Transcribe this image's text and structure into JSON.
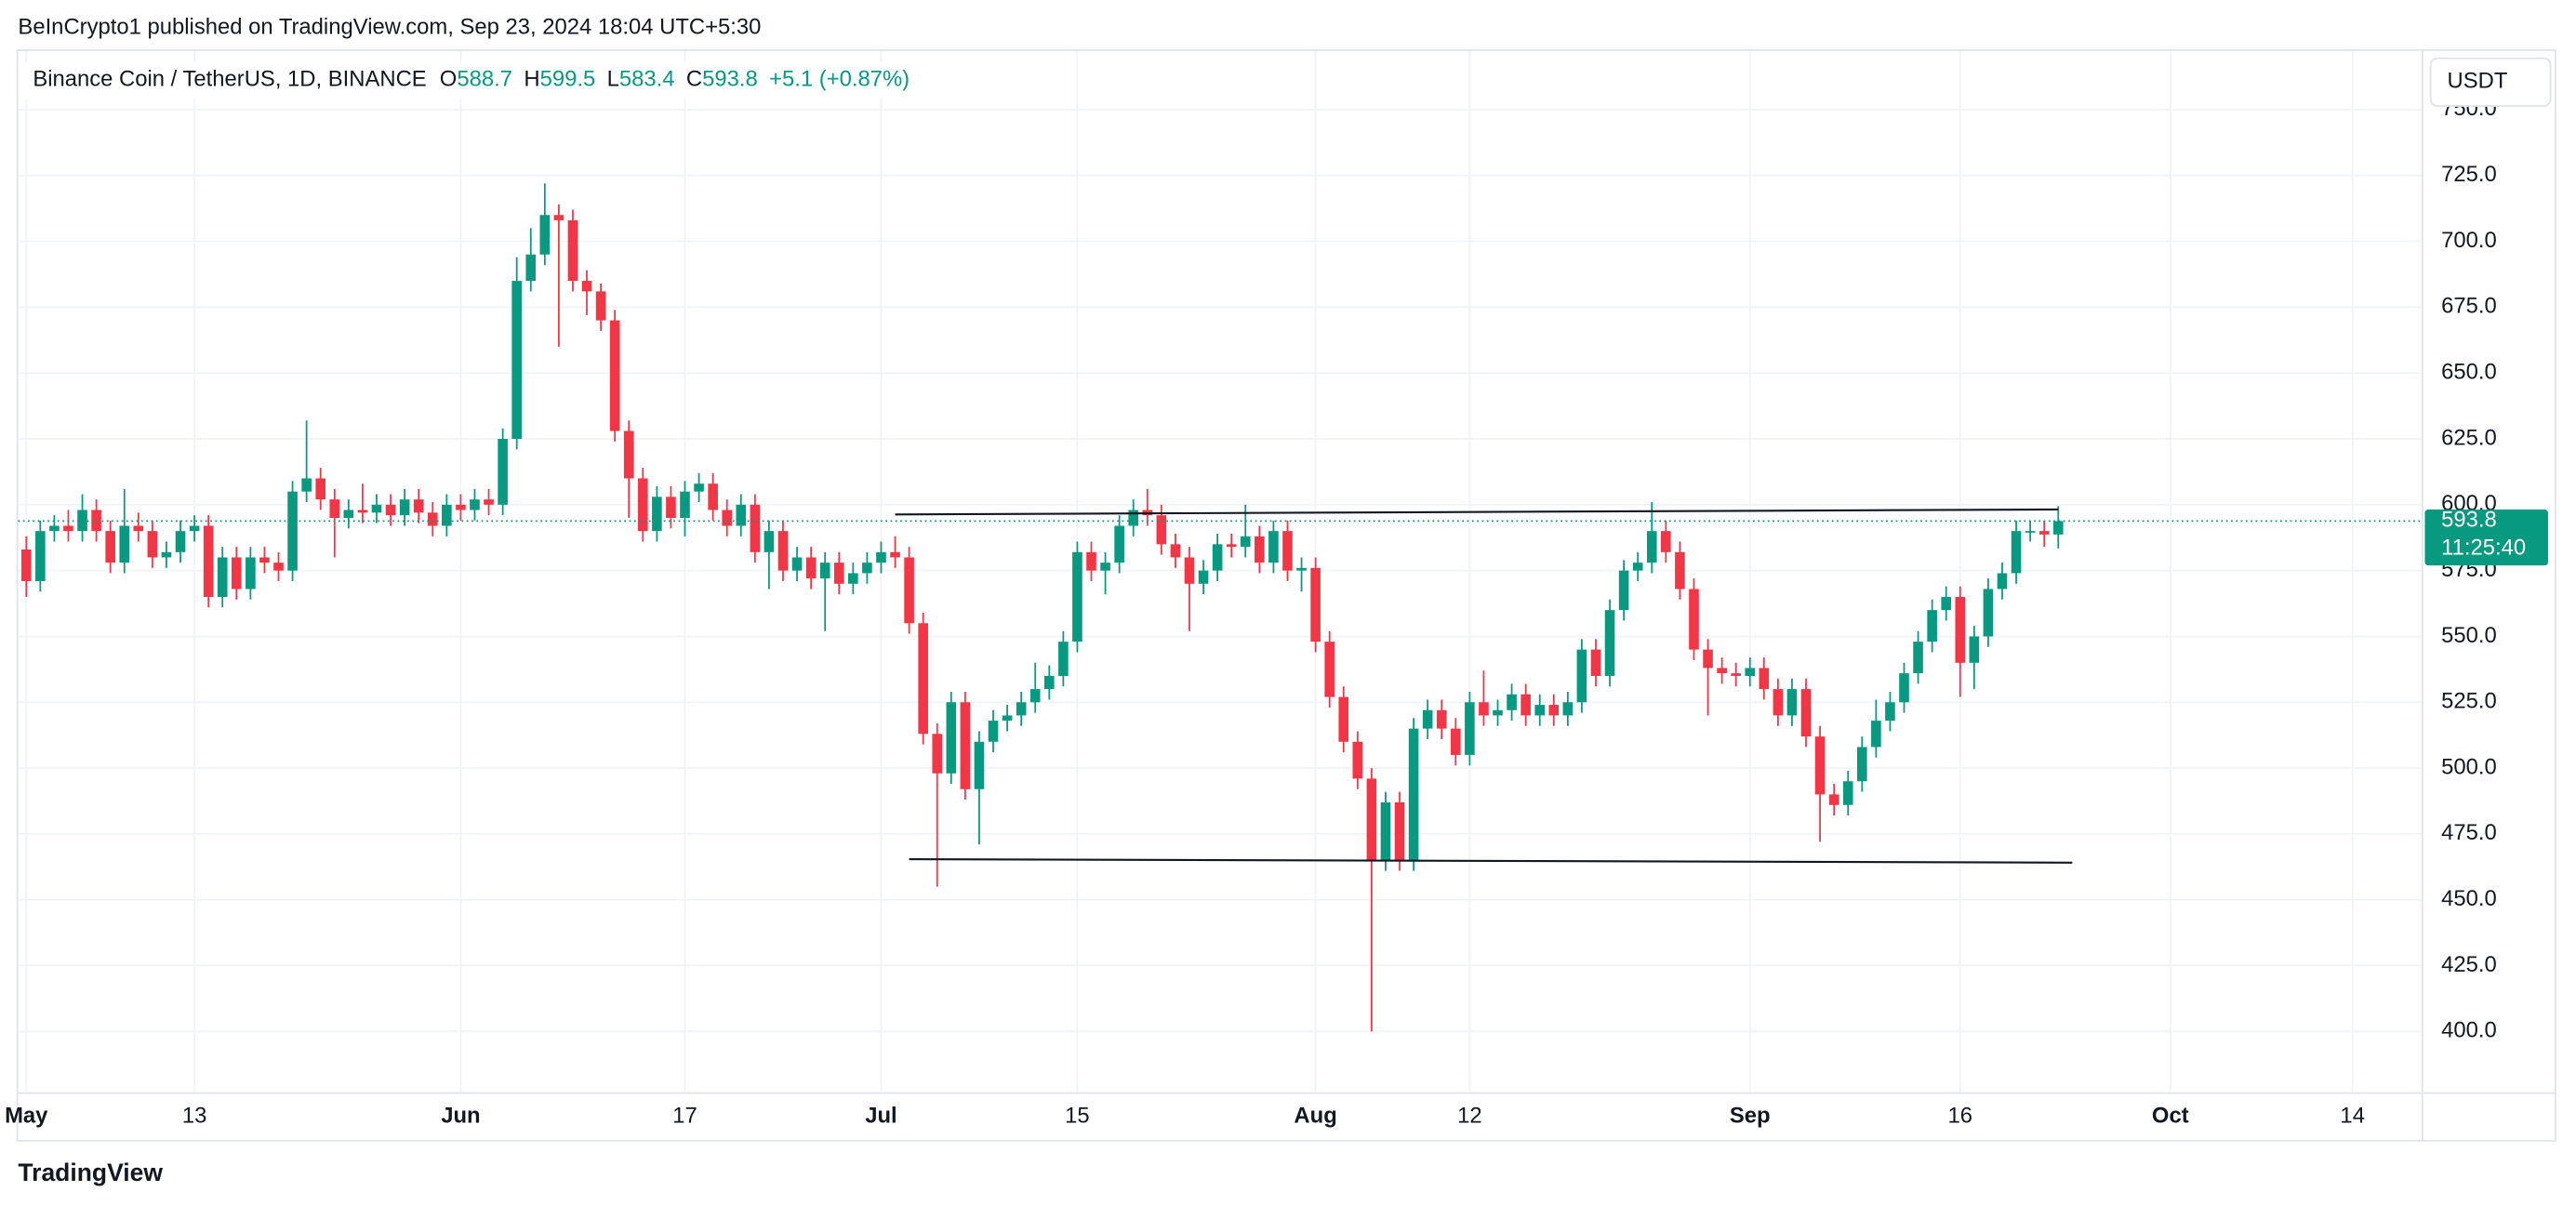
{
  "publisher": "BeInCrypto1 published on TradingView.com, Sep 23, 2024 18:04 UTC+5:30",
  "footer": "TradingView",
  "chart_data": {
    "type": "candlestick",
    "title": "Binance Coin / TetherUS, 1D, BINANCE",
    "ohlc_labels": [
      "O",
      "H",
      "L",
      "C"
    ],
    "change": "+5.1 (+0.87%)",
    "currency": "USDT",
    "countdown": "11:25:40",
    "up_color": "#089981",
    "down_color": "#f23645",
    "grid": true,
    "x": [
      "May 1",
      "May 2",
      "May 3",
      "May 4",
      "May 5",
      "May 6",
      "May 7",
      "May 8",
      "May 9",
      "May 10",
      "May 11",
      "May 12",
      "May 13",
      "May 14",
      "May 15",
      "May 16",
      "May 17",
      "May 18",
      "May 19",
      "May 20",
      "May 21",
      "May 22",
      "May 23",
      "May 24",
      "May 25",
      "May 26",
      "May 27",
      "May 28",
      "May 29",
      "May 30",
      "May 31",
      "Jun 1",
      "Jun 2",
      "Jun 3",
      "Jun 4",
      "Jun 5",
      "Jun 6",
      "Jun 7",
      "Jun 8",
      "Jun 9",
      "Jun 10",
      "Jun 11",
      "Jun 12",
      "Jun 13",
      "Jun 14",
      "Jun 15",
      "Jun 16",
      "Jun 17",
      "Jun 18",
      "Jun 19",
      "Jun 20",
      "Jun 21",
      "Jun 22",
      "Jun 23",
      "Jun 24",
      "Jun 25",
      "Jun 26",
      "Jun 27",
      "Jun 28",
      "Jun 29",
      "Jun 30",
      "Jul 1",
      "Jul 2",
      "Jul 3",
      "Jul 4",
      "Jul 5",
      "Jul 6",
      "Jul 7",
      "Jul 8",
      "Jul 9",
      "Jul 10",
      "Jul 11",
      "Jul 12",
      "Jul 13",
      "Jul 14",
      "Jul 15",
      "Jul 16",
      "Jul 17",
      "Jul 18",
      "Jul 19",
      "Jul 20",
      "Jul 21",
      "Jul 22",
      "Jul 23",
      "Jul 24",
      "Jul 25",
      "Jul 26",
      "Jul 27",
      "Jul 28",
      "Jul 29",
      "Jul 30",
      "Jul 31",
      "Aug 1",
      "Aug 2",
      "Aug 3",
      "Aug 4",
      "Aug 5",
      "Aug 6",
      "Aug 7",
      "Aug 8",
      "Aug 9",
      "Aug 10",
      "Aug 11",
      "Aug 12",
      "Aug 13",
      "Aug 14",
      "Aug 15",
      "Aug 16",
      "Aug 17",
      "Aug 18",
      "Aug 19",
      "Aug 20",
      "Aug 21",
      "Aug 22",
      "Aug 23",
      "Aug 24",
      "Aug 25",
      "Aug 26",
      "Aug 27",
      "Aug 28",
      "Aug 29",
      "Aug 30",
      "Aug 31",
      "Sep 1",
      "Sep 2",
      "Sep 3",
      "Sep 4",
      "Sep 5",
      "Sep 6",
      "Sep 7",
      "Sep 8",
      "Sep 9",
      "Sep 10",
      "Sep 11",
      "Sep 12",
      "Sep 13",
      "Sep 14",
      "Sep 15",
      "Sep 16",
      "Sep 17",
      "Sep 18",
      "Sep 19",
      "Sep 20",
      "Sep 21",
      "Sep 22",
      "Sep 23"
    ],
    "open": [
      583,
      571,
      590,
      592,
      590,
      598,
      590,
      578,
      592,
      590,
      580,
      582,
      590,
      592,
      565,
      580,
      568,
      580,
      578,
      575,
      605,
      610,
      602,
      595,
      598,
      597,
      600,
      596,
      602,
      597,
      592,
      600,
      598,
      602,
      600,
      625,
      685,
      695,
      710,
      708,
      685,
      681,
      670,
      628,
      610,
      590,
      603,
      595,
      605,
      608,
      598,
      592,
      600,
      582,
      590,
      575,
      580,
      572,
      578,
      570,
      574,
      578,
      582,
      580,
      555,
      513,
      498,
      525,
      492,
      510,
      518,
      520,
      525,
      530,
      535,
      548,
      582,
      575,
      578,
      592,
      598,
      596,
      585,
      580,
      570,
      575,
      585,
      584,
      588,
      578,
      590,
      575,
      576,
      548,
      527,
      510,
      496,
      465,
      487,
      465,
      515,
      522,
      515,
      505,
      525,
      520,
      522,
      528,
      520,
      524,
      520,
      525,
      545,
      535,
      560,
      575,
      578,
      590,
      582,
      568,
      545,
      538,
      536,
      535,
      538,
      530,
      520,
      530,
      512,
      490,
      486,
      495,
      508,
      518,
      525,
      536,
      548,
      560,
      565,
      540,
      550,
      568,
      574,
      590,
      590,
      588.7
    ],
    "high": [
      588,
      594,
      596,
      598,
      604,
      602,
      594,
      606,
      597,
      594,
      586,
      594,
      596,
      596,
      584,
      584,
      584,
      584,
      582,
      609,
      632,
      614,
      606,
      602,
      608,
      604,
      604,
      606,
      606,
      601,
      604,
      604,
      606,
      606,
      629,
      694,
      705,
      722,
      714,
      712,
      689,
      684,
      674,
      632,
      614,
      607,
      607,
      609,
      612,
      612,
      602,
      604,
      604,
      594,
      594,
      584,
      584,
      582,
      582,
      578,
      582,
      586,
      588,
      584,
      559,
      517,
      529,
      529,
      514,
      522,
      524,
      529,
      540,
      539,
      552,
      586,
      586,
      582,
      596,
      602,
      606,
      600,
      589,
      584,
      579,
      589,
      589,
      600,
      592,
      594,
      594,
      580,
      580,
      552,
      531,
      514,
      500,
      491,
      491,
      519,
      526,
      526,
      519,
      529,
      537,
      526,
      532,
      532,
      528,
      528,
      529,
      549,
      549,
      564,
      579,
      582,
      601,
      594,
      586,
      572,
      549,
      542,
      540,
      542,
      542,
      534,
      534,
      534,
      516,
      494,
      499,
      512,
      526,
      529,
      540,
      552,
      564,
      569,
      569,
      554,
      572,
      578,
      594,
      594,
      594,
      599.5
    ],
    "low": [
      565,
      567,
      586,
      586,
      586,
      586,
      574,
      574,
      586,
      576,
      576,
      578,
      586,
      561,
      561,
      564,
      564,
      574,
      571,
      571,
      601,
      598,
      580,
      591,
      593,
      593,
      592,
      592,
      593,
      588,
      588,
      594,
      594,
      596,
      596,
      621,
      681,
      691,
      660,
      681,
      672,
      666,
      624,
      595,
      586,
      586,
      591,
      588,
      601,
      594,
      588,
      588,
      578,
      568,
      571,
      571,
      568,
      552,
      566,
      566,
      570,
      574,
      576,
      551,
      509,
      455,
      494,
      488,
      471,
      506,
      514,
      516,
      521,
      526,
      531,
      544,
      571,
      566,
      574,
      588,
      592,
      581,
      576,
      552,
      566,
      571,
      580,
      580,
      574,
      574,
      571,
      567,
      544,
      523,
      506,
      492,
      400,
      461,
      461,
      461,
      511,
      511,
      501,
      501,
      516,
      516,
      518,
      516,
      516,
      516,
      516,
      521,
      531,
      531,
      556,
      571,
      574,
      578,
      564,
      541,
      520,
      532,
      531,
      531,
      526,
      516,
      516,
      508,
      472,
      482,
      482,
      491,
      504,
      514,
      521,
      532,
      544,
      556,
      527,
      530,
      546,
      564,
      570,
      586,
      584,
      583.4
    ],
    "close": [
      571,
      590,
      592,
      590,
      598,
      590,
      578,
      592,
      590,
      580,
      582,
      590,
      592,
      565,
      580,
      568,
      580,
      578,
      575,
      605,
      610,
      602,
      595,
      598,
      597,
      600,
      596,
      602,
      597,
      592,
      600,
      598,
      602,
      600,
      625,
      685,
      695,
      710,
      708,
      685,
      681,
      670,
      628,
      610,
      590,
      603,
      595,
      605,
      608,
      598,
      592,
      600,
      582,
      590,
      575,
      580,
      572,
      578,
      570,
      574,
      578,
      582,
      580,
      555,
      513,
      498,
      525,
      492,
      510,
      518,
      520,
      525,
      530,
      535,
      548,
      582,
      575,
      578,
      592,
      598,
      596,
      585,
      580,
      570,
      575,
      585,
      584,
      588,
      578,
      590,
      575,
      576,
      548,
      527,
      510,
      496,
      465,
      487,
      465,
      515,
      522,
      515,
      505,
      525,
      520,
      522,
      528,
      520,
      524,
      520,
      525,
      545,
      535,
      560,
      575,
      578,
      590,
      582,
      568,
      545,
      538,
      536,
      535,
      538,
      530,
      520,
      530,
      512,
      490,
      486,
      495,
      508,
      518,
      525,
      536,
      548,
      560,
      565,
      540,
      550,
      568,
      574,
      590,
      590,
      588.7,
      593.8
    ],
    "lines": [
      {
        "x": [
          "Jul 2",
          "Sep 23"
        ],
        "y": [
          596.3,
          598.2
        ]
      },
      {
        "x": [
          "Jul 3",
          "Sep 24"
        ],
        "y": [
          465.4,
          464.1
        ]
      }
    ],
    "ylim": [
      376.9,
      772.3
    ],
    "yticks": [
      {
        "value": 400,
        "label": "400.0"
      },
      {
        "value": 425,
        "label": "425.0"
      },
      {
        "value": 450,
        "label": "450.0"
      },
      {
        "value": 475,
        "label": "475.0"
      },
      {
        "value": 500,
        "label": "500.0"
      },
      {
        "value": 525,
        "label": "525.0"
      },
      {
        "value": 550,
        "label": "550.0"
      },
      {
        "value": 575,
        "label": "575.0"
      },
      {
        "value": 600,
        "label": "600.0"
      },
      {
        "value": 625,
        "label": "625.0"
      },
      {
        "value": 650,
        "label": "650.0"
      },
      {
        "value": 675,
        "label": "675.0"
      },
      {
        "value": 700,
        "label": "700.0"
      },
      {
        "value": 725,
        "label": "725.0"
      },
      {
        "value": 750,
        "label": "750.0"
      }
    ],
    "xticks": [
      {
        "value": "May 1",
        "label": "May"
      },
      {
        "value": "May 13",
        "label": "13"
      },
      {
        "value": "Jun 1",
        "label": "Jun"
      },
      {
        "value": "Jun 17",
        "label": "17"
      },
      {
        "value": "Jul 1",
        "label": "Jul"
      },
      {
        "value": "Jul 15",
        "label": "15"
      },
      {
        "value": "Aug 1",
        "label": "Aug"
      },
      {
        "value": "Aug 12",
        "label": "12"
      },
      {
        "value": "Sep 1",
        "label": "Sep"
      },
      {
        "value": "Sep 16",
        "label": "16"
      },
      {
        "value": "Oct 1",
        "label": "Oct"
      },
      {
        "value": "Oct 14",
        "label": "14"
      }
    ]
  }
}
